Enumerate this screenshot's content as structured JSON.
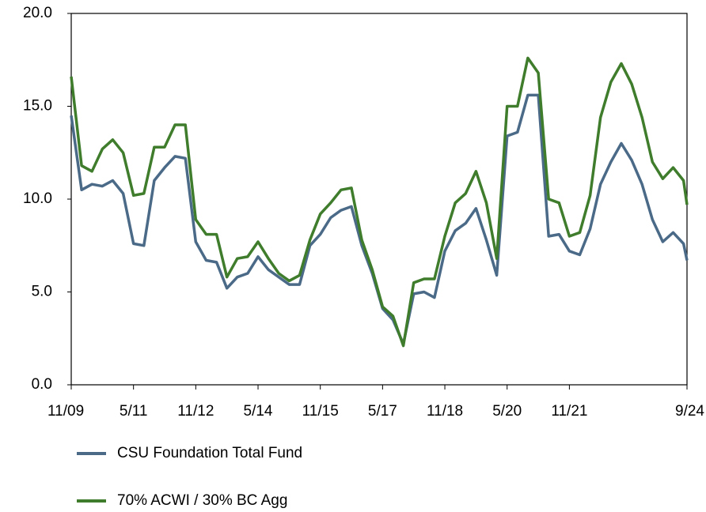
{
  "chart_data": {
    "type": "line",
    "x": [
      "11/09",
      "2/10",
      "5/10",
      "8/10",
      "11/10",
      "2/11",
      "5/11",
      "8/11",
      "11/11",
      "2/12",
      "5/12",
      "8/12",
      "11/12",
      "2/13",
      "5/13",
      "8/13",
      "11/13",
      "2/14",
      "5/14",
      "8/14",
      "11/14",
      "2/15",
      "5/15",
      "8/15",
      "11/15",
      "2/16",
      "5/16",
      "8/16",
      "11/16",
      "2/17",
      "5/17",
      "8/17",
      "11/17",
      "2/18",
      "5/18",
      "8/18",
      "11/18",
      "2/19",
      "5/19",
      "8/19",
      "11/19",
      "2/20",
      "5/20",
      "8/20",
      "11/20",
      "2/21",
      "5/21",
      "8/21",
      "11/21",
      "2/22",
      "5/22",
      "8/22",
      "11/22",
      "2/23",
      "5/23",
      "8/23",
      "11/23",
      "2/24",
      "5/24",
      "8/24",
      "9/24"
    ],
    "series": [
      {
        "name": "CSU Foundation Total Fund",
        "color": "#4a6a88",
        "values": [
          14.5,
          10.5,
          10.8,
          10.7,
          11.0,
          10.3,
          7.6,
          7.5,
          11.0,
          11.7,
          12.3,
          12.2,
          7.7,
          6.7,
          6.6,
          5.2,
          5.8,
          6.0,
          6.9,
          6.2,
          5.8,
          5.4,
          5.4,
          7.5,
          8.1,
          9.0,
          9.4,
          9.6,
          7.5,
          6.0,
          4.1,
          3.5,
          2.2,
          4.9,
          5.0,
          4.7,
          7.2,
          8.3,
          8.7,
          9.5,
          7.8,
          5.9,
          13.4,
          13.6,
          15.6,
          15.6,
          8.0,
          8.1,
          7.2,
          7.0,
          8.4,
          10.8,
          12.0,
          13.0,
          12.1,
          10.8,
          8.9,
          7.7,
          8.2,
          7.6,
          6.7
        ]
      },
      {
        "name": "70% ACWI / 30% BC Agg",
        "color": "#3f7d2c",
        "values": [
          16.6,
          11.8,
          11.5,
          12.7,
          13.2,
          12.5,
          10.2,
          10.3,
          12.8,
          12.8,
          14.0,
          14.0,
          8.9,
          8.1,
          8.1,
          5.8,
          6.8,
          6.9,
          7.7,
          6.8,
          6.0,
          5.6,
          5.9,
          7.8,
          9.2,
          9.8,
          10.5,
          10.6,
          7.8,
          6.2,
          4.2,
          3.7,
          2.1,
          5.5,
          5.7,
          5.7,
          8.0,
          9.8,
          10.3,
          11.5,
          9.8,
          6.8,
          15.0,
          15.0,
          17.6,
          16.8,
          10.0,
          9.8,
          8.0,
          8.2,
          10.2,
          14.4,
          16.3,
          17.3,
          16.2,
          14.4,
          12.0,
          11.1,
          11.7,
          11.0,
          9.7
        ]
      }
    ],
    "xticks": [
      "11/09",
      "5/11",
      "11/12",
      "5/14",
      "11/15",
      "5/17",
      "11/18",
      "5/20",
      "11/21",
      "9/24"
    ],
    "ylim": [
      0,
      20
    ],
    "yticks": [
      {
        "value": 0,
        "label": "0.0"
      },
      {
        "value": 5,
        "label": "5.0"
      },
      {
        "value": 10,
        "label": "10.0"
      },
      {
        "value": 15,
        "label": "15.0"
      },
      {
        "value": 20,
        "label": "20.0"
      }
    ]
  }
}
